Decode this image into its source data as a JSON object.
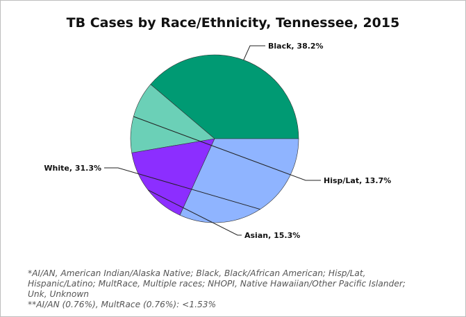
{
  "chart_data": {
    "type": "pie",
    "title": "TB Cases by Race/Ethnicity, Tennessee, 2015",
    "slices": [
      {
        "label": "Black, 38.2%",
        "category": "Black",
        "value": 38.2,
        "color": "#009a73"
      },
      {
        "label": "Hisp/Lat, 13.7%",
        "category": "Hisp/Lat",
        "value": 13.7,
        "color": "#6bd0b7"
      },
      {
        "label": "Asian, 15.3%",
        "category": "Asian",
        "value": 15.3,
        "color": "#8c2eff"
      },
      {
        "label": "White, 31.3%",
        "category": "White",
        "value": 31.3,
        "color": "#8fb4ff"
      }
    ],
    "start_direction": "3 o'clock, counter-clockwise",
    "legend": "none"
  },
  "footnotes": {
    "line1": "*AI/AN, American Indian/Alaska Native; Black, Black/African American; Hisp/Lat,",
    "line2": "Hispanic/Latino; MultRace, Multiple races; NHOPI, Native Hawaiian/Other Pacific Islander;",
    "line3": "Unk, Unknown",
    "line4": "**AI/AN (0.76%), MultRace (0.76%): <1.53%"
  }
}
